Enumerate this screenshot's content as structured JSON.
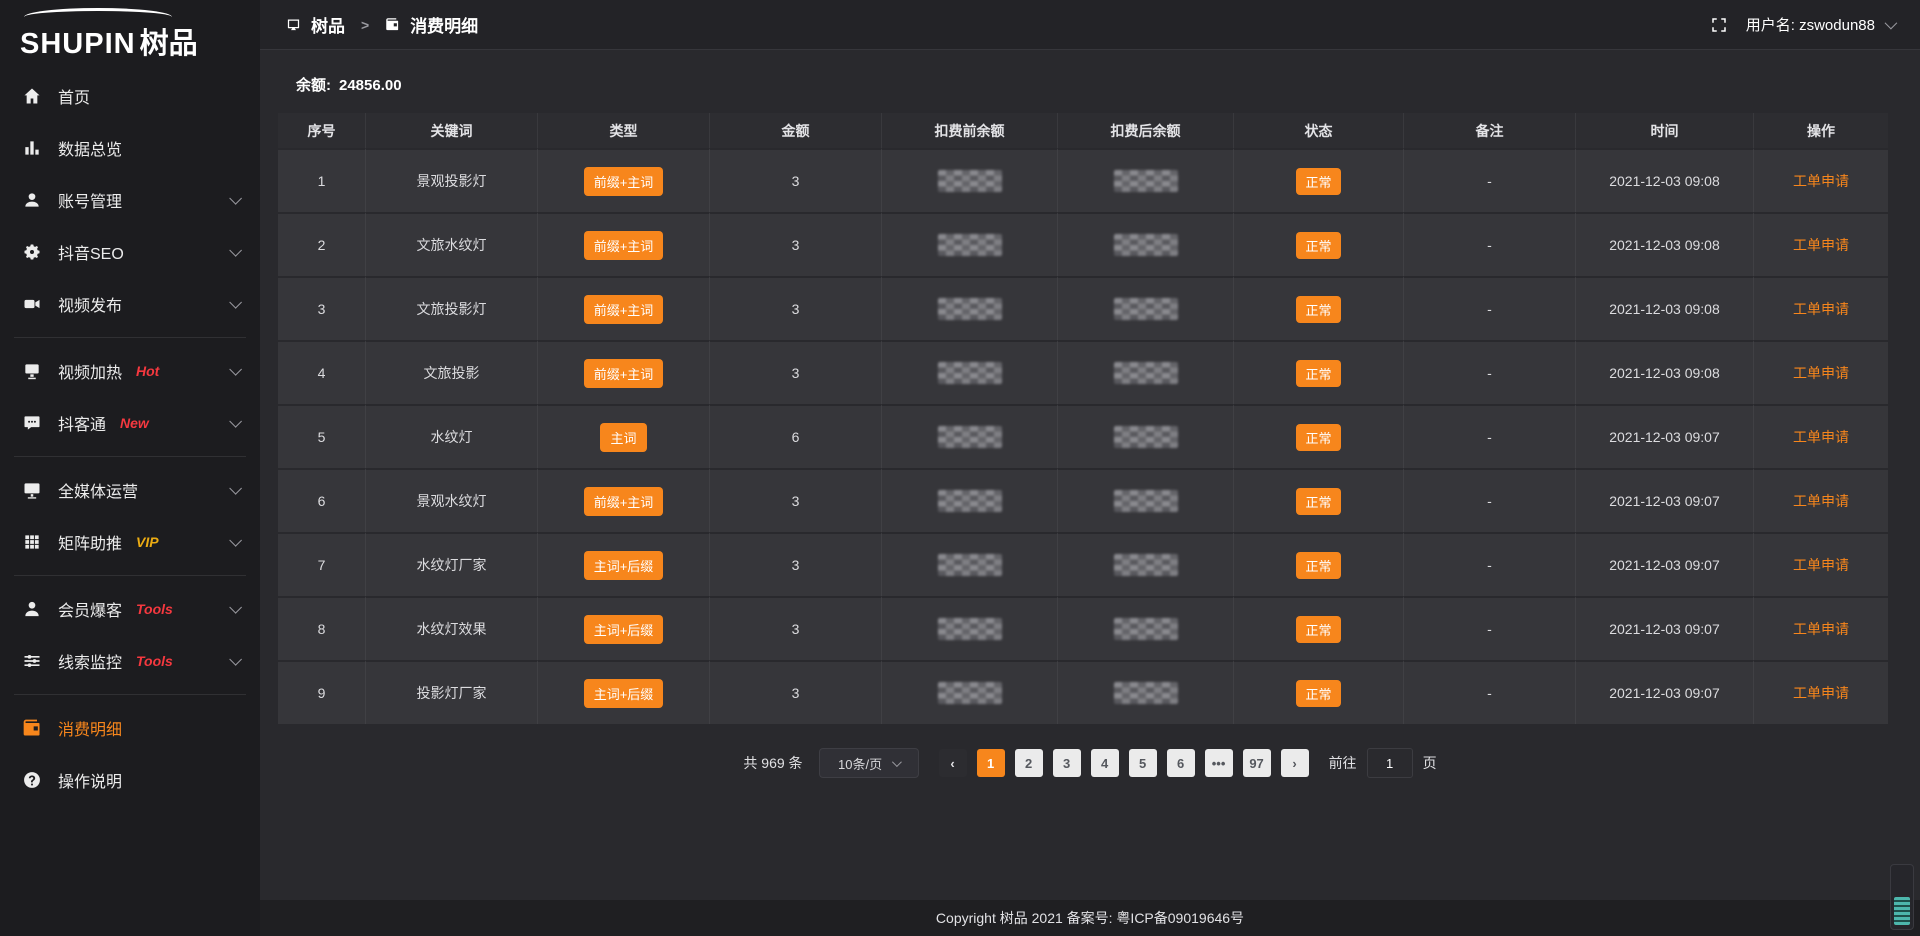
{
  "colors": {
    "accent": "#f7861c",
    "badge_red": "#f5383f",
    "badge_gold": "#ecac13",
    "widget_teal": "#4db6ac"
  },
  "app": {
    "logo_latin": "SHUPIN",
    "logo_cjk": "树品"
  },
  "header": {
    "breadcrumb": [
      {
        "label": "树品",
        "icon": "panel"
      },
      {
        "label": "消费明细",
        "icon": "wallet"
      }
    ],
    "separator": ">",
    "fullscreen_icon": "fullscreen",
    "username": "用户名: zswodun88"
  },
  "sidebar": {
    "items": [
      {
        "label": "首页",
        "icon": "home"
      },
      {
        "label": "数据总览",
        "icon": "chart"
      },
      {
        "label": "账号管理",
        "icon": "user",
        "chevron": true
      },
      {
        "label": "抖音SEO",
        "icon": "gear",
        "chevron": true
      },
      {
        "label": "视频发布",
        "icon": "video",
        "chevron": true
      },
      {
        "divider": true
      },
      {
        "label": "视频加热",
        "icon": "heat",
        "badge": "Hot",
        "badge_style": "red",
        "chevron": true
      },
      {
        "label": "抖客通",
        "icon": "chat",
        "badge": "New",
        "badge_style": "red",
        "chevron": true
      },
      {
        "divider": true
      },
      {
        "label": "全媒体运营",
        "icon": "monitor",
        "chevron": true
      },
      {
        "label": "矩阵助推",
        "icon": "grid",
        "badge": "VIP",
        "badge_style": "gold",
        "chevron": true
      },
      {
        "divider": true
      },
      {
        "label": "会员爆客",
        "icon": "member",
        "badge": "Tools",
        "badge_style": "red",
        "chevron": true
      },
      {
        "label": "线索监控",
        "icon": "sliders",
        "badge": "Tools",
        "badge_style": "red",
        "chevron": true
      },
      {
        "divider": true
      },
      {
        "label": "消费明细",
        "icon": "wallet",
        "active": true
      },
      {
        "label": "操作说明",
        "icon": "question"
      }
    ]
  },
  "main": {
    "balance_label": "余额:",
    "balance_value": "24856.00",
    "table": {
      "columns": [
        "序号",
        "关键词",
        "类型",
        "金额",
        "扣费前余额",
        "扣费后余额",
        "状态",
        "备注",
        "时间",
        "操作"
      ],
      "masked_columns_note": "扣费前余额 and 扣费后余额 values are pixel-blurred in the screenshot",
      "rows": [
        {
          "index": "1",
          "keyword": "景观投影灯",
          "type": "前缀+主词",
          "amount": "3",
          "status": "正常",
          "remark": "-",
          "time": "2021-12-03 09:08",
          "action": "工单申请"
        },
        {
          "index": "2",
          "keyword": "文旅水纹灯",
          "type": "前缀+主词",
          "amount": "3",
          "status": "正常",
          "remark": "-",
          "time": "2021-12-03 09:08",
          "action": "工单申请"
        },
        {
          "index": "3",
          "keyword": "文旅投影灯",
          "type": "前缀+主词",
          "amount": "3",
          "status": "正常",
          "remark": "-",
          "time": "2021-12-03 09:08",
          "action": "工单申请"
        },
        {
          "index": "4",
          "keyword": "文旅投影",
          "type": "前缀+主词",
          "amount": "3",
          "status": "正常",
          "remark": "-",
          "time": "2021-12-03 09:08",
          "action": "工单申请"
        },
        {
          "index": "5",
          "keyword": "水纹灯",
          "type": "主词",
          "amount": "6",
          "status": "正常",
          "remark": "-",
          "time": "2021-12-03 09:07",
          "action": "工单申请"
        },
        {
          "index": "6",
          "keyword": "景观水纹灯",
          "type": "前缀+主词",
          "amount": "3",
          "status": "正常",
          "remark": "-",
          "time": "2021-12-03 09:07",
          "action": "工单申请"
        },
        {
          "index": "7",
          "keyword": "水纹灯厂家",
          "type": "主词+后缀",
          "amount": "3",
          "status": "正常",
          "remark": "-",
          "time": "2021-12-03 09:07",
          "action": "工单申请"
        },
        {
          "index": "8",
          "keyword": "水纹灯效果",
          "type": "主词+后缀",
          "amount": "3",
          "status": "正常",
          "remark": "-",
          "time": "2021-12-03 09:07",
          "action": "工单申请"
        },
        {
          "index": "9",
          "keyword": "投影灯厂家",
          "type": "主词+后缀",
          "amount": "3",
          "status": "正常",
          "remark": "-",
          "time": "2021-12-03 09:07",
          "action": "工单申请"
        }
      ]
    },
    "pagination": {
      "total": "共 969 条",
      "page_size": "10条/页",
      "prev_label": "‹",
      "next_label": "›",
      "pages": [
        {
          "label": "1",
          "active": true
        },
        {
          "label": "2"
        },
        {
          "label": "3"
        },
        {
          "label": "4"
        },
        {
          "label": "5"
        },
        {
          "label": "6"
        },
        {
          "label": "•••"
        },
        {
          "label": "97"
        }
      ],
      "goto_label": "前往",
      "goto_value": "1",
      "goto_suffix": "页"
    }
  },
  "footer": {
    "copyright": "Copyright 树品 2021 备案号: 粤ICP备09019646号"
  }
}
